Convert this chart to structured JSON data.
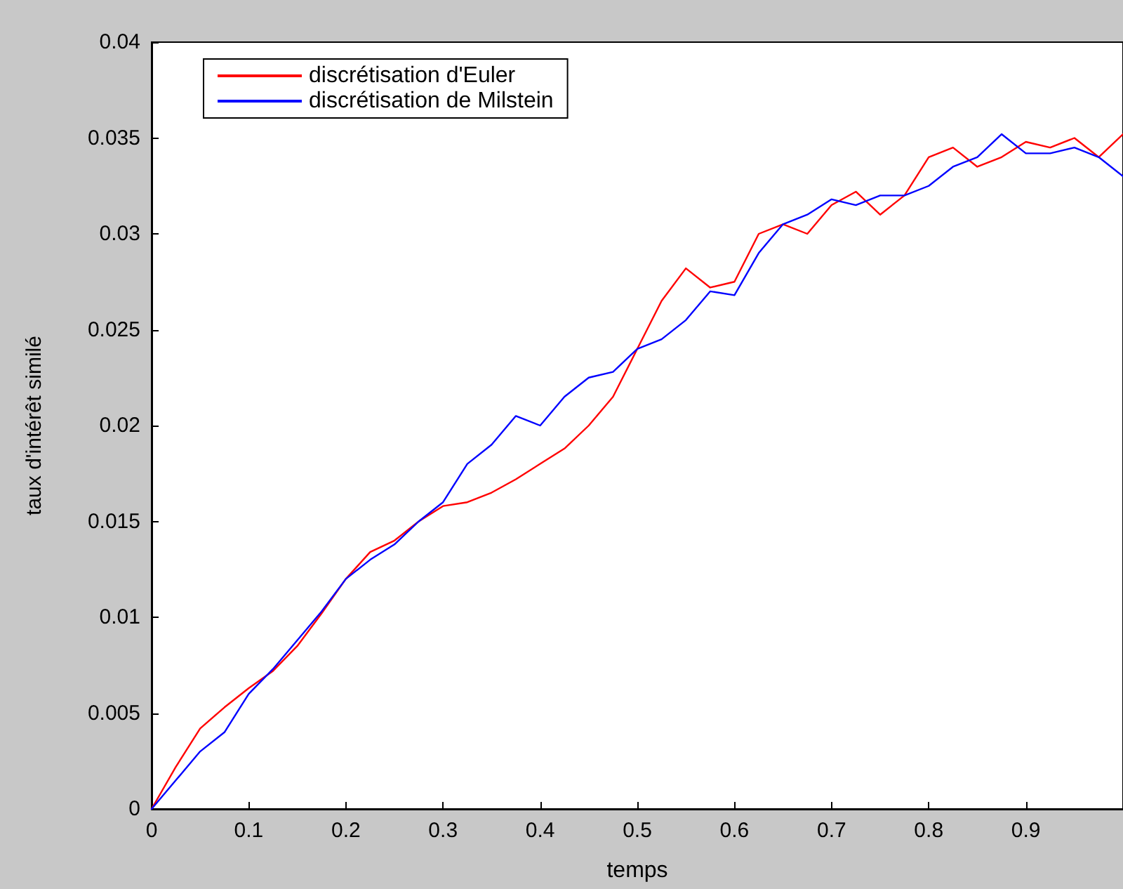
{
  "chart_data": {
    "type": "line",
    "xlabel": "temps",
    "ylabel": "taux d'intérêt similé",
    "x": [
      0,
      0.025,
      0.05,
      0.075,
      0.1,
      0.125,
      0.15,
      0.175,
      0.2,
      0.225,
      0.25,
      0.275,
      0.3,
      0.325,
      0.35,
      0.375,
      0.4,
      0.425,
      0.45,
      0.475,
      0.5,
      0.525,
      0.55,
      0.575,
      0.6,
      0.625,
      0.65,
      0.675,
      0.7,
      0.725,
      0.75,
      0.775,
      0.8,
      0.825,
      0.85,
      0.875,
      0.9,
      0.925,
      0.95,
      0.975,
      1.0
    ],
    "series": [
      {
        "name": "discrétisation d'Euler",
        "color": "#ff0000",
        "values": [
          0,
          0.0022,
          0.0042,
          0.0053,
          0.0063,
          0.0072,
          0.0085,
          0.0102,
          0.012,
          0.0134,
          0.014,
          0.015,
          0.0158,
          0.016,
          0.0165,
          0.0172,
          0.018,
          0.0188,
          0.02,
          0.0215,
          0.024,
          0.0265,
          0.0282,
          0.0272,
          0.0275,
          0.03,
          0.0305,
          0.03,
          0.0315,
          0.0322,
          0.031,
          0.032,
          0.034,
          0.0345,
          0.0335,
          0.034,
          0.0348,
          0.0345,
          0.035,
          0.034,
          0.0352
        ]
      },
      {
        "name": "discrétisation de Milstein",
        "color": "#0000ff",
        "values": [
          0,
          0.0015,
          0.003,
          0.004,
          0.006,
          0.0073,
          0.0088,
          0.0103,
          0.012,
          0.013,
          0.0138,
          0.015,
          0.016,
          0.018,
          0.019,
          0.0205,
          0.02,
          0.0215,
          0.0225,
          0.0228,
          0.024,
          0.0245,
          0.0255,
          0.027,
          0.0268,
          0.029,
          0.0305,
          0.031,
          0.0318,
          0.0315,
          0.032,
          0.032,
          0.0325,
          0.0335,
          0.034,
          0.0352,
          0.0342,
          0.0342,
          0.0345,
          0.034,
          0.033
        ]
      }
    ],
    "xlim": [
      0,
      1
    ],
    "xticks": [
      0,
      0.1,
      0.2,
      0.3,
      0.4,
      0.5,
      0.6,
      0.7,
      0.8,
      0.9
    ],
    "ylim": [
      0,
      0.04
    ],
    "yticks": [
      0,
      0.005,
      0.01,
      0.015,
      0.02,
      0.025,
      0.03,
      0.035,
      0.04
    ],
    "grid": false,
    "legend": "top left",
    "marker": "none",
    "line_style": "solid"
  }
}
